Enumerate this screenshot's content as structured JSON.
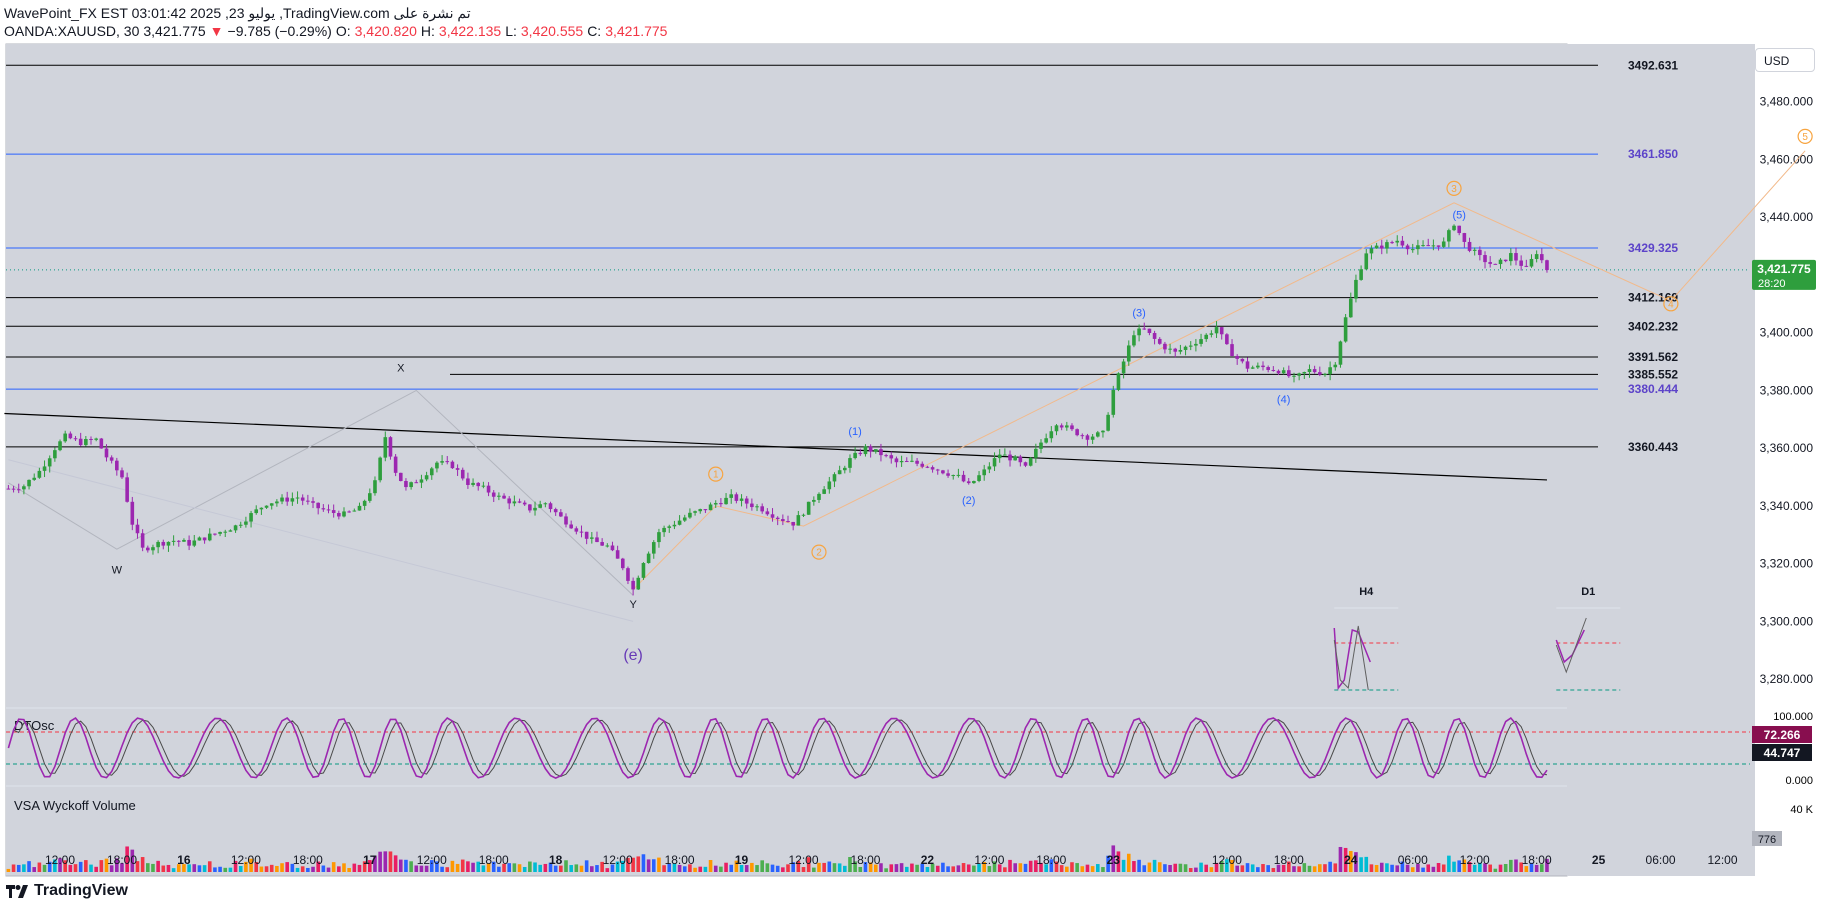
{
  "header": {
    "line1": "WavePoint_FX EST 03:01:42 2025 ,23 يوليو ,TradingView.com تم نشرة على",
    "symbol": "OANDA:XAUUSD, 30",
    "last": "3,421.775",
    "change_arrow": "▼",
    "change": "−9.785 (−0.29%)",
    "o_label": "O:",
    "o_value": "3,420.820",
    "h_label": "H:",
    "h_value": "3,422.135",
    "l_label": "L:",
    "l_value": "3,420.555",
    "c_label": "C:",
    "c_value": "3,421.775"
  },
  "currency_button": "USD",
  "colors": {
    "pane_bg": "#d1d4dc",
    "up": "#089981",
    "up_body": "#2e9e3d",
    "down": "#9c27b0",
    "blue_line": "#2962ff",
    "orange": "#f7a440",
    "red": "#f23645",
    "green": "#089981",
    "price_badge": "#2e9e3d",
    "purple_label": "#673ab7"
  },
  "price_badge": {
    "price": "3,421.775",
    "countdown": "28:20"
  },
  "osc_badges": {
    "k": "72.266",
    "d": "44.747"
  },
  "vol_badge": "776",
  "footer_logo": "TradingView",
  "chart_data": {
    "type": "candlestick",
    "symbol": "OANDA:XAUUSD",
    "interval": "30",
    "y_axis": {
      "ticks": [
        3280,
        3300,
        3320,
        3340,
        3360,
        3380,
        3400,
        3420,
        3440,
        3460,
        3480
      ],
      "tick_labels": [
        "3,280.000",
        "3,300.000",
        "3,320.000",
        "3,340.000",
        "3,360.000",
        "3,380.000",
        "3,400.000",
        "3,420.000",
        "3,440.000",
        "3,460.000",
        "3,480.000"
      ],
      "range": [
        3270,
        3500
      ]
    },
    "x_axis": {
      "labels": [
        "12:00",
        "18:00",
        "16",
        "12:00",
        "18:00",
        "17",
        "12:00",
        "18:00",
        "18",
        "12:00",
        "18:00",
        "19",
        "12:00",
        "18:00",
        "22",
        "12:00",
        "18:00",
        "23",
        "12:00",
        "18:00",
        "24",
        "06:00",
        "12:00",
        "18:00",
        "25",
        "06:00",
        "12:00"
      ],
      "bold_labels": [
        "16",
        "17",
        "18",
        "19",
        "22",
        "23",
        "24",
        "25"
      ],
      "bar_index_of_label": [
        10,
        22,
        34,
        46,
        58,
        70,
        82,
        94,
        106,
        118,
        130,
        142,
        154,
        166,
        178,
        190,
        202,
        214,
        236,
        248,
        260,
        272,
        284,
        296,
        308,
        320,
        332
      ]
    },
    "horizontal_levels": [
      {
        "value": 3492.631,
        "label": "3492.631",
        "color": "black"
      },
      {
        "value": 3461.85,
        "label": "3461.850",
        "color": "blue"
      },
      {
        "value": 3429.325,
        "label": "3429.325",
        "color": "blue"
      },
      {
        "value": 3412.169,
        "label": "3412.169",
        "color": "black"
      },
      {
        "value": 3402.232,
        "label": "3402.232",
        "color": "black"
      },
      {
        "value": 3391.562,
        "label": "3391.562",
        "color": "black"
      },
      {
        "value": 3385.552,
        "label": "3385.552",
        "color": "black"
      },
      {
        "value": 3380.444,
        "label": "3380.444",
        "color": "blue"
      },
      {
        "value": 3360.443,
        "label": "3360.443",
        "color": "black"
      }
    ],
    "trendline": [
      {
        "bar": 0,
        "price": 3372
      },
      {
        "bar": 298,
        "price": 3349
      }
    ],
    "price_path": [
      [
        0,
        3346
      ],
      [
        3,
        3347
      ],
      [
        6,
        3352
      ],
      [
        9,
        3360
      ],
      [
        11,
        3364
      ],
      [
        14,
        3362
      ],
      [
        17,
        3363
      ],
      [
        19,
        3357
      ],
      [
        22,
        3350
      ],
      [
        24,
        3334
      ],
      [
        26,
        3325
      ],
      [
        29,
        3327
      ],
      [
        32,
        3328
      ],
      [
        35,
        3327
      ],
      [
        38,
        3329
      ],
      [
        41,
        3331
      ],
      [
        44,
        3333
      ],
      [
        47,
        3337
      ],
      [
        50,
        3341
      ],
      [
        53,
        3342
      ],
      [
        56,
        3343
      ],
      [
        59,
        3340
      ],
      [
        62,
        3338
      ],
      [
        65,
        3337
      ],
      [
        68,
        3339
      ],
      [
        71,
        3348
      ],
      [
        73,
        3364
      ],
      [
        75,
        3352
      ],
      [
        77,
        3346
      ],
      [
        80,
        3350
      ],
      [
        83,
        3355
      ],
      [
        86,
        3354
      ],
      [
        89,
        3348
      ],
      [
        92,
        3346
      ],
      [
        95,
        3343
      ],
      [
        98,
        3341
      ],
      [
        101,
        3339
      ],
      [
        104,
        3341
      ],
      [
        107,
        3336
      ],
      [
        110,
        3332
      ],
      [
        113,
        3328
      ],
      [
        116,
        3326
      ],
      [
        119,
        3319
      ],
      [
        121,
        3311
      ],
      [
        123,
        3321
      ],
      [
        126,
        3331
      ],
      [
        129,
        3334
      ],
      [
        132,
        3337
      ],
      [
        135,
        3339
      ],
      [
        137,
        3341
      ],
      [
        140,
        3343
      ],
      [
        143,
        3341
      ],
      [
        146,
        3339
      ],
      [
        149,
        3336
      ],
      [
        152,
        3334
      ],
      [
        154,
        3338
      ],
      [
        157,
        3345
      ],
      [
        160,
        3350
      ],
      [
        163,
        3356
      ],
      [
        166,
        3360
      ],
      [
        169,
        3358
      ],
      [
        172,
        3355
      ],
      [
        175,
        3355
      ],
      [
        178,
        3354
      ],
      [
        181,
        3352
      ],
      [
        184,
        3350
      ],
      [
        186,
        3347
      ],
      [
        189,
        3352
      ],
      [
        192,
        3358
      ],
      [
        195,
        3356
      ],
      [
        197,
        3353
      ],
      [
        200,
        3362
      ],
      [
        203,
        3369
      ],
      [
        206,
        3366
      ],
      [
        209,
        3364
      ],
      [
        212,
        3365
      ],
      [
        214,
        3380
      ],
      [
        216,
        3390
      ],
      [
        218,
        3400
      ],
      [
        220,
        3401
      ],
      [
        223,
        3396
      ],
      [
        226,
        3393
      ],
      [
        229,
        3396
      ],
      [
        232,
        3399
      ],
      [
        234,
        3402
      ],
      [
        236,
        3395
      ],
      [
        238,
        3391
      ],
      [
        240,
        3388
      ],
      [
        243,
        3388
      ],
      [
        246,
        3387
      ],
      [
        249,
        3384
      ],
      [
        252,
        3387
      ],
      [
        255,
        3386
      ],
      [
        257,
        3390
      ],
      [
        259,
        3405
      ],
      [
        261,
        3418
      ],
      [
        263,
        3428
      ],
      [
        266,
        3430
      ],
      [
        269,
        3432
      ],
      [
        272,
        3429
      ],
      [
        275,
        3430
      ],
      [
        278,
        3431
      ],
      [
        280,
        3438
      ],
      [
        282,
        3431
      ],
      [
        285,
        3426
      ],
      [
        288,
        3423
      ],
      [
        291,
        3427
      ],
      [
        294,
        3422
      ],
      [
        296,
        3428
      ],
      [
        298,
        3422
      ]
    ],
    "wave_labels": [
      {
        "text": "X",
        "bar": 76,
        "price": 3388,
        "color": "black"
      },
      {
        "text": "W",
        "bar": 21,
        "price": 3318,
        "color": "black"
      },
      {
        "text": "Y",
        "bar": 121,
        "price": 3306,
        "color": "black"
      },
      {
        "text": "(e)",
        "bar": 121,
        "price": 3288,
        "color": "purple",
        "big": true
      },
      {
        "text": "(1)",
        "bar": 164,
        "price": 3366,
        "color": "blue"
      },
      {
        "text": "(2)",
        "bar": 186,
        "price": 3342,
        "color": "blue"
      },
      {
        "text": "(3)",
        "bar": 219,
        "price": 3407,
        "color": "blue"
      },
      {
        "text": "(4)",
        "bar": 247,
        "price": 3377,
        "color": "blue"
      },
      {
        "text": "(5)",
        "bar": 281,
        "price": 3441,
        "color": "blue"
      },
      {
        "text": "1",
        "bar": 137,
        "price": 3351,
        "color": "orange",
        "circled": true
      },
      {
        "text": "2",
        "bar": 157,
        "price": 3324,
        "color": "orange",
        "circled": true
      },
      {
        "text": "3",
        "bar": 280,
        "price": 3450,
        "color": "orange",
        "circled": true
      },
      {
        "text": "4",
        "bar": 322,
        "price": 3410,
        "color": "orange",
        "circled": true
      },
      {
        "text": "5",
        "bar": 348,
        "price": 3468,
        "color": "orange",
        "circled": true
      }
    ],
    "wxy_path": [
      [
        0,
        3348
      ],
      [
        21,
        3325
      ],
      [
        79,
        3380
      ],
      [
        121,
        3309
      ],
      [
        121,
        3300
      ],
      [
        0,
        3356
      ]
    ],
    "orange_path": [
      [
        121,
        3311
      ],
      [
        137,
        3340
      ],
      [
        154,
        3333
      ],
      [
        280,
        3445
      ],
      [
        322,
        3411
      ],
      [
        348,
        3463
      ]
    ],
    "mini_panels": [
      {
        "title": "H4",
        "bar": 263
      },
      {
        "title": "D1",
        "bar": 306
      }
    ],
    "oscillator": {
      "name": "DTOsc",
      "levels": {
        "upper": 75,
        "lower": 25
      },
      "axis_labels": [
        "100.000",
        "0.000"
      ],
      "k_last": 72.266,
      "d_last": 44.747
    },
    "volume": {
      "name": "VSA Wyckoff Volume",
      "axis_label": "40 K",
      "last": 776
    }
  }
}
